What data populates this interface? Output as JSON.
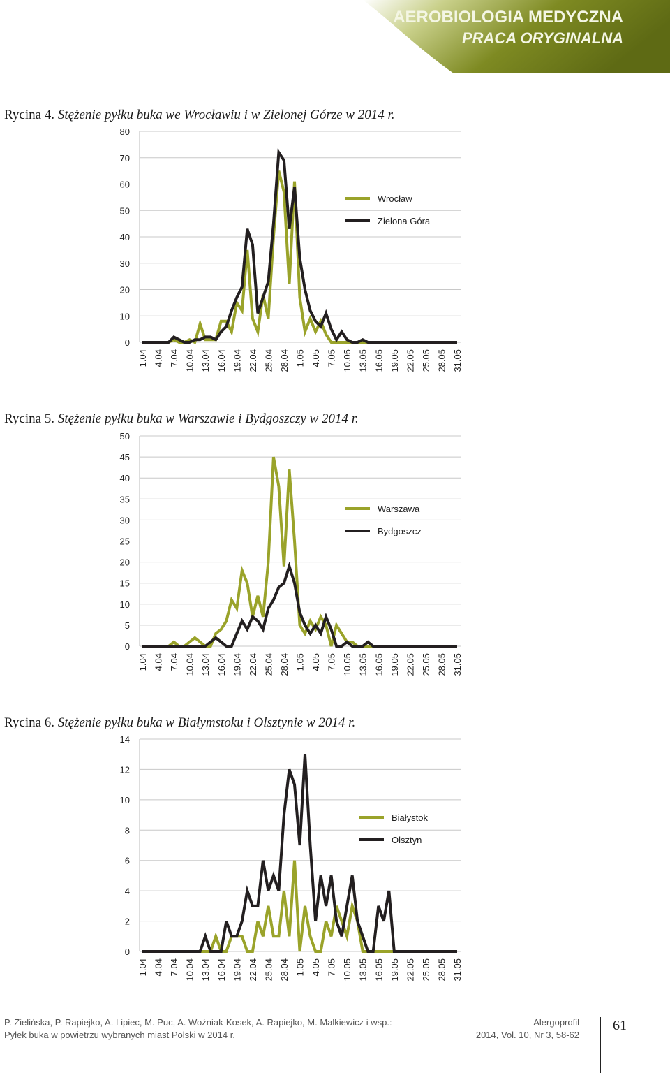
{
  "header": {
    "journal": "AEROBIOLOGIA MEDYCZNA",
    "section": "PRACA ORYGINALNA"
  },
  "chart_data": [
    {
      "type": "line",
      "figure_label": "Rycina 4.",
      "title": "Stężenie pyłku buka we Wrocławiu i w Zielonej Górze w 2014 r.",
      "categories": [
        "1.04",
        null,
        null,
        "4.04",
        null,
        null,
        "7.04",
        null,
        null,
        "10.04",
        null,
        null,
        "13.04",
        null,
        null,
        "16.04",
        null,
        null,
        "19.04",
        null,
        null,
        "22.04",
        null,
        null,
        "25.04",
        null,
        null,
        "28.04",
        null,
        null,
        "1.05",
        null,
        null,
        "4.05",
        null,
        null,
        "7.05",
        null,
        null,
        "10.05",
        null,
        null,
        "13.05",
        null,
        null,
        "16.05",
        null,
        null,
        "19.05",
        null,
        null,
        "22.05",
        null,
        null,
        "25.05",
        null,
        null,
        "28.05",
        null,
        null,
        "31.05"
      ],
      "series": [
        {
          "name": "Wrocław",
          "color": "#9aa32a",
          "values": [
            0,
            0,
            0,
            0,
            0,
            0,
            1,
            0,
            0,
            1,
            0,
            7,
            1,
            1,
            1,
            8,
            8,
            4,
            15,
            12,
            35,
            9,
            4,
            18,
            9,
            40,
            65,
            57,
            22,
            61,
            17,
            4,
            9,
            4,
            8,
            3,
            0,
            0,
            0,
            0,
            0,
            0,
            0,
            0,
            0,
            0,
            0,
            0,
            0,
            0,
            0,
            0,
            0,
            0,
            0,
            0,
            0,
            0,
            0,
            0,
            0
          ]
        },
        {
          "name": "Zielona Góra",
          "color": "#231f20",
          "values": [
            0,
            0,
            0,
            0,
            0,
            0,
            2,
            1,
            0,
            0,
            1,
            1,
            2,
            2,
            1,
            4,
            6,
            12,
            17,
            21,
            43,
            37,
            11,
            17,
            23,
            45,
            72,
            69,
            43,
            59,
            32,
            20,
            12,
            8,
            6,
            11,
            5,
            1,
            4,
            1,
            0,
            0,
            1,
            0,
            0,
            0,
            0,
            0,
            0,
            0,
            0,
            0,
            0,
            0,
            0,
            0,
            0,
            0,
            0,
            0,
            0
          ]
        }
      ],
      "ylim": [
        0,
        80
      ],
      "yticks": [
        0,
        10,
        20,
        30,
        40,
        50,
        60,
        70,
        80
      ],
      "grid": true
    },
    {
      "type": "line",
      "figure_label": "Rycina 5.",
      "title": "Stężenie pyłku buka w Warszawie i Bydgoszczy w 2014 r.",
      "categories": [
        "1.04",
        null,
        null,
        "4.04",
        null,
        null,
        "7.04",
        null,
        null,
        "10.04",
        null,
        null,
        "13.04",
        null,
        null,
        "16.04",
        null,
        null,
        "19.04",
        null,
        null,
        "22.04",
        null,
        null,
        "25.04",
        null,
        null,
        "28.04",
        null,
        null,
        "1.05",
        null,
        null,
        "4.05",
        null,
        null,
        "7.05",
        null,
        null,
        "10.05",
        null,
        null,
        "13.05",
        null,
        null,
        "16.05",
        null,
        null,
        "19.05",
        null,
        null,
        "22.05",
        null,
        null,
        "25.05",
        null,
        null,
        "28.05",
        null,
        null,
        "31.05"
      ],
      "series": [
        {
          "name": "Warszawa",
          "color": "#9aa32a",
          "values": [
            0,
            0,
            0,
            0,
            0,
            0,
            1,
            0,
            0,
            1,
            2,
            1,
            0,
            0,
            3,
            4,
            6,
            11,
            9,
            18,
            15,
            7,
            12,
            7,
            20,
            45,
            38,
            19,
            42,
            25,
            5,
            3,
            6,
            4,
            7,
            5,
            0,
            5,
            3,
            1,
            1,
            0,
            0,
            0,
            0,
            0,
            0,
            0,
            0,
            0,
            0,
            0,
            0,
            0,
            0,
            0,
            0,
            0,
            0,
            0,
            0
          ]
        },
        {
          "name": "Bydgoszcz",
          "color": "#231f20",
          "values": [
            0,
            0,
            0,
            0,
            0,
            0,
            0,
            0,
            0,
            0,
            0,
            0,
            0,
            1,
            2,
            1,
            0,
            0,
            3,
            6,
            4,
            7,
            6,
            4,
            9,
            11,
            14,
            15,
            19,
            15,
            8,
            5,
            3,
            5,
            3,
            7,
            4,
            0,
            0,
            1,
            0,
            0,
            0,
            1,
            0,
            0,
            0,
            0,
            0,
            0,
            0,
            0,
            0,
            0,
            0,
            0,
            0,
            0,
            0,
            0,
            0
          ]
        }
      ],
      "ylim": [
        0,
        50
      ],
      "yticks": [
        0,
        5,
        10,
        15,
        20,
        25,
        30,
        35,
        40,
        45,
        50
      ],
      "grid": true
    },
    {
      "type": "line",
      "figure_label": "Rycina 6.",
      "title": "Stężenie pyłku buka w Białymstoku i Olsztynie w 2014 r.",
      "categories": [
        "1.04",
        null,
        null,
        "4.04",
        null,
        null,
        "7.04",
        null,
        null,
        "10.04",
        null,
        null,
        "13.04",
        null,
        null,
        "16.04",
        null,
        null,
        "19.04",
        null,
        null,
        "22.04",
        null,
        null,
        "25.04",
        null,
        null,
        "28.04",
        null,
        null,
        "1.05",
        null,
        null,
        "4.05",
        null,
        null,
        "7.05",
        null,
        null,
        "10.05",
        null,
        null,
        "13.05",
        null,
        null,
        "16.05",
        null,
        null,
        "19.05",
        null,
        null,
        "22.05",
        null,
        null,
        "25.05",
        null,
        null,
        "28.05",
        null,
        null,
        "31.05"
      ],
      "series": [
        {
          "name": "Białystok",
          "color": "#9aa32a",
          "values": [
            0,
            0,
            0,
            0,
            0,
            0,
            0,
            0,
            0,
            0,
            0,
            0,
            0,
            0,
            1,
            0,
            0,
            1,
            1,
            1,
            0,
            0,
            2,
            1,
            3,
            1,
            1,
            4,
            1,
            6,
            0,
            3,
            1,
            0,
            0,
            2,
            1,
            3,
            2,
            1,
            3,
            2,
            0,
            0,
            0,
            0,
            0,
            0,
            0,
            0,
            0,
            0,
            0,
            0,
            0,
            0,
            0,
            0,
            0,
            0,
            0
          ]
        },
        {
          "name": "Olsztyn",
          "color": "#231f20",
          "values": [
            0,
            0,
            0,
            0,
            0,
            0,
            0,
            0,
            0,
            0,
            0,
            0,
            1,
            0,
            0,
            0,
            2,
            1,
            1,
            2,
            4,
            3,
            3,
            6,
            4,
            5,
            4,
            9,
            12,
            11,
            7,
            13,
            7,
            2,
            5,
            3,
            5,
            2,
            1,
            3,
            5,
            2,
            1,
            0,
            0,
            3,
            2,
            4,
            0,
            0,
            0,
            0,
            0,
            0,
            0,
            0,
            0,
            0,
            0,
            0,
            0
          ]
        }
      ],
      "ylim": [
        0,
        14
      ],
      "yticks": [
        0,
        2,
        4,
        6,
        8,
        10,
        12,
        14
      ],
      "grid": true
    }
  ],
  "footer": {
    "authors": "P. Zielińska, P. Rapiejko, A. Lipiec, M. Puc, A. Woźniak-Kosek, A. Rapiejko, M. Malkiewicz i wsp.:",
    "article": "Pyłek buka w powietrzu wybranych miast Polski w 2014 r.",
    "journal": "Alergoprofil",
    "citation": "2014, Vol. 10, Nr 3, 58-62",
    "page": "61"
  }
}
